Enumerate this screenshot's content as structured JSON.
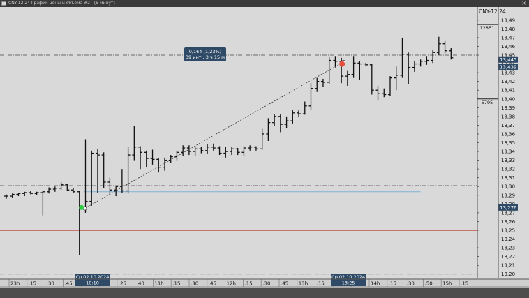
{
  "window": {
    "title": "CNY-12.24 График цены и объёма #2 - [5 минут]",
    "close_glyph": "×"
  },
  "colors": {
    "background": "#d9d9d9",
    "price_bar": "#111111",
    "level_line": "#c0392b",
    "ray_line": "#7fb3d5",
    "grid_dashdot": "#444444",
    "current_price_label_bg": "#2e4a66",
    "point_start": "#2ecc40",
    "point_end": "#e74c3c"
  },
  "chart_data": {
    "type": "ohlc",
    "instrument_label": "CNY-12.24",
    "interval": "5 минут",
    "ylim": [
      13.195,
      13.505
    ],
    "y_ticks": [
      "13,49",
      "13,48",
      "13,47",
      "13,46",
      "13,45",
      "13,44",
      "13,43",
      "13,42",
      "13,41",
      "13,40",
      "13,39",
      "13,38",
      "13,37",
      "13,36",
      "13,35",
      "13,34",
      "13,33",
      "13,32",
      "13,31",
      "13,30",
      "13,29",
      "13,28",
      "13,27",
      "13,26",
      "13,25",
      "13,24",
      "13,23",
      "13,22",
      "13,21",
      "13,20"
    ],
    "x_tick_labels": [
      "23h",
      ":15",
      ":30",
      ":45",
      "9h",
      ":10",
      ":25",
      ":40",
      "11h",
      ":15",
      ":30",
      ":45",
      "12h",
      ":15",
      ":30",
      ":45",
      "13h",
      ":15",
      ":30",
      ":45",
      "14h",
      ":15",
      ":30",
      ":50",
      "15h",
      ":15"
    ],
    "date_row_label": "2",
    "bars": [
      {
        "o": 13.289,
        "h": 13.291,
        "l": 13.286,
        "c": 13.289
      },
      {
        "o": 13.289,
        "h": 13.292,
        "l": 13.287,
        "c": 13.291
      },
      {
        "o": 13.291,
        "h": 13.293,
        "l": 13.289,
        "c": 13.292
      },
      {
        "o": 13.292,
        "h": 13.294,
        "l": 13.289,
        "c": 13.293
      },
      {
        "o": 13.293,
        "h": 13.295,
        "l": 13.291,
        "c": 13.292
      },
      {
        "o": 13.292,
        "h": 13.294,
        "l": 13.29,
        "c": 13.293
      },
      {
        "o": 13.293,
        "h": 13.295,
        "l": 13.267,
        "c": 13.294
      },
      {
        "o": 13.294,
        "h": 13.299,
        "l": 13.292,
        "c": 13.297
      },
      {
        "o": 13.297,
        "h": 13.3,
        "l": 13.294,
        "c": 13.298
      },
      {
        "o": 13.298,
        "h": 13.305,
        "l": 13.296,
        "c": 13.302
      },
      {
        "o": 13.302,
        "h": 13.303,
        "l": 13.295,
        "c": 13.296
      },
      {
        "o": 13.296,
        "h": 13.298,
        "l": 13.293,
        "c": 13.294
      },
      {
        "o": 13.294,
        "h": 13.295,
        "l": 13.222,
        "c": 13.275
      },
      {
        "o": 13.275,
        "h": 13.354,
        "l": 13.27,
        "c": 13.283
      },
      {
        "o": 13.283,
        "h": 13.341,
        "l": 13.278,
        "c": 13.338
      },
      {
        "o": 13.338,
        "h": 13.343,
        "l": 13.293,
        "c": 13.336
      },
      {
        "o": 13.336,
        "h": 13.339,
        "l": 13.298,
        "c": 13.305
      },
      {
        "o": 13.305,
        "h": 13.31,
        "l": 13.29,
        "c": 13.296
      },
      {
        "o": 13.296,
        "h": 13.301,
        "l": 13.289,
        "c": 13.3
      },
      {
        "o": 13.3,
        "h": 13.32,
        "l": 13.293,
        "c": 13.295
      },
      {
        "o": 13.295,
        "h": 13.345,
        "l": 13.292,
        "c": 13.336
      },
      {
        "o": 13.336,
        "h": 13.369,
        "l": 13.33,
        "c": 13.345
      },
      {
        "o": 13.345,
        "h": 13.346,
        "l": 13.32,
        "c": 13.339
      },
      {
        "o": 13.339,
        "h": 13.341,
        "l": 13.322,
        "c": 13.332
      },
      {
        "o": 13.332,
        "h": 13.342,
        "l": 13.325,
        "c": 13.331
      },
      {
        "o": 13.331,
        "h": 13.332,
        "l": 13.316,
        "c": 13.322
      },
      {
        "o": 13.322,
        "h": 13.333,
        "l": 13.318,
        "c": 13.33
      },
      {
        "o": 13.33,
        "h": 13.336,
        "l": 13.327,
        "c": 13.334
      },
      {
        "o": 13.334,
        "h": 13.341,
        "l": 13.33,
        "c": 13.339
      },
      {
        "o": 13.339,
        "h": 13.347,
        "l": 13.335,
        "c": 13.344
      },
      {
        "o": 13.344,
        "h": 13.347,
        "l": 13.336,
        "c": 13.34
      },
      {
        "o": 13.34,
        "h": 13.346,
        "l": 13.335,
        "c": 13.343
      },
      {
        "o": 13.343,
        "h": 13.345,
        "l": 13.338,
        "c": 13.341
      },
      {
        "o": 13.341,
        "h": 13.348,
        "l": 13.337,
        "c": 13.345
      },
      {
        "o": 13.345,
        "h": 13.349,
        "l": 13.341,
        "c": 13.344
      },
      {
        "o": 13.344,
        "h": 13.346,
        "l": 13.336,
        "c": 13.338
      },
      {
        "o": 13.338,
        "h": 13.345,
        "l": 13.333,
        "c": 13.34
      },
      {
        "o": 13.34,
        "h": 13.345,
        "l": 13.336,
        "c": 13.343
      },
      {
        "o": 13.343,
        "h": 13.344,
        "l": 13.336,
        "c": 13.339
      },
      {
        "o": 13.339,
        "h": 13.346,
        "l": 13.335,
        "c": 13.344
      },
      {
        "o": 13.344,
        "h": 13.347,
        "l": 13.341,
        "c": 13.345
      },
      {
        "o": 13.345,
        "h": 13.346,
        "l": 13.341,
        "c": 13.343
      },
      {
        "o": 13.343,
        "h": 13.366,
        "l": 13.342,
        "c": 13.36
      },
      {
        "o": 13.36,
        "h": 13.378,
        "l": 13.352,
        "c": 13.373
      },
      {
        "o": 13.373,
        "h": 13.383,
        "l": 13.369,
        "c": 13.38
      },
      {
        "o": 13.38,
        "h": 13.383,
        "l": 13.362,
        "c": 13.371
      },
      {
        "o": 13.371,
        "h": 13.38,
        "l": 13.367,
        "c": 13.375
      },
      {
        "o": 13.375,
        "h": 13.387,
        "l": 13.372,
        "c": 13.384
      },
      {
        "o": 13.384,
        "h": 13.387,
        "l": 13.379,
        "c": 13.383
      },
      {
        "o": 13.383,
        "h": 13.397,
        "l": 13.382,
        "c": 13.392
      },
      {
        "o": 13.392,
        "h": 13.418,
        "l": 13.387,
        "c": 13.412
      },
      {
        "o": 13.412,
        "h": 13.424,
        "l": 13.408,
        "c": 13.42
      },
      {
        "o": 13.42,
        "h": 13.423,
        "l": 13.414,
        "c": 13.419
      },
      {
        "o": 13.419,
        "h": 13.448,
        "l": 13.417,
        "c": 13.444
      },
      {
        "o": 13.444,
        "h": 13.449,
        "l": 13.436,
        "c": 13.443
      },
      {
        "o": 13.443,
        "h": 13.447,
        "l": 13.418,
        "c": 13.426
      },
      {
        "o": 13.426,
        "h": 13.432,
        "l": 13.415,
        "c": 13.428
      },
      {
        "o": 13.428,
        "h": 13.449,
        "l": 13.424,
        "c": 13.441
      },
      {
        "o": 13.441,
        "h": 13.443,
        "l": 13.422,
        "c": 13.44
      },
      {
        "o": 13.44,
        "h": 13.441,
        "l": 13.438,
        "c": 13.439
      },
      {
        "o": 13.439,
        "h": 13.44,
        "l": 13.405,
        "c": 13.41
      },
      {
        "o": 13.41,
        "h": 13.415,
        "l": 13.398,
        "c": 13.406
      },
      {
        "o": 13.406,
        "h": 13.412,
        "l": 13.402,
        "c": 13.405
      },
      {
        "o": 13.405,
        "h": 13.426,
        "l": 13.403,
        "c": 13.424
      },
      {
        "o": 13.424,
        "h": 13.437,
        "l": 13.41,
        "c": 13.427
      },
      {
        "o": 13.427,
        "h": 13.47,
        "l": 13.424,
        "c": 13.451
      },
      {
        "o": 13.451,
        "h": 13.453,
        "l": 13.417,
        "c": 13.436
      },
      {
        "o": 13.436,
        "h": 13.443,
        "l": 13.431,
        "c": 13.44
      },
      {
        "o": 13.44,
        "h": 13.445,
        "l": 13.437,
        "c": 13.443
      },
      {
        "o": 13.443,
        "h": 13.449,
        "l": 13.439,
        "c": 13.444
      },
      {
        "o": 13.444,
        "h": 13.456,
        "l": 13.441,
        "c": 13.453
      },
      {
        "o": 13.453,
        "h": 13.471,
        "l": 13.45,
        "c": 13.463
      },
      {
        "o": 13.463,
        "h": 13.466,
        "l": 13.452,
        "c": 13.455
      },
      {
        "o": 13.455,
        "h": 13.458,
        "l": 13.445,
        "c": 13.447
      }
    ],
    "horizontal_levels": [
      {
        "y": 13.45,
        "style": "dashdot"
      },
      {
        "y": 13.301,
        "style": "dashdot"
      },
      {
        "y": 13.25,
        "style": "solid-red"
      },
      {
        "y": 13.2,
        "style": "dashdot"
      }
    ],
    "ray": {
      "y": 13.294,
      "from_bar": 12,
      "to_bar": 68
    },
    "measure": {
      "from": {
        "bar": 13,
        "y": 13.275
      },
      "to": {
        "bar": 55,
        "y": 13.439
      },
      "label_line1": "0,164 (1,23%)",
      "label_line2": "39 инт., 3 ч 15 м"
    },
    "price_tags": [
      {
        "y": 13.445,
        "text": "13,445"
      },
      {
        "y": 13.439,
        "text": "13,439"
      },
      {
        "y": 13.276,
        "text": "13,276"
      }
    ],
    "volume_marks": [
      {
        "y": 13.485,
        "text": "12851"
      },
      {
        "y": 13.4,
        "text": "5795"
      }
    ],
    "cursor_time_labels": [
      {
        "bar": 13,
        "line1": "Ср 02.10.2024",
        "line2": "10:10"
      },
      {
        "bar": 55,
        "line1": "Ср 02.10.2024",
        "line2": "13:25"
      }
    ]
  }
}
